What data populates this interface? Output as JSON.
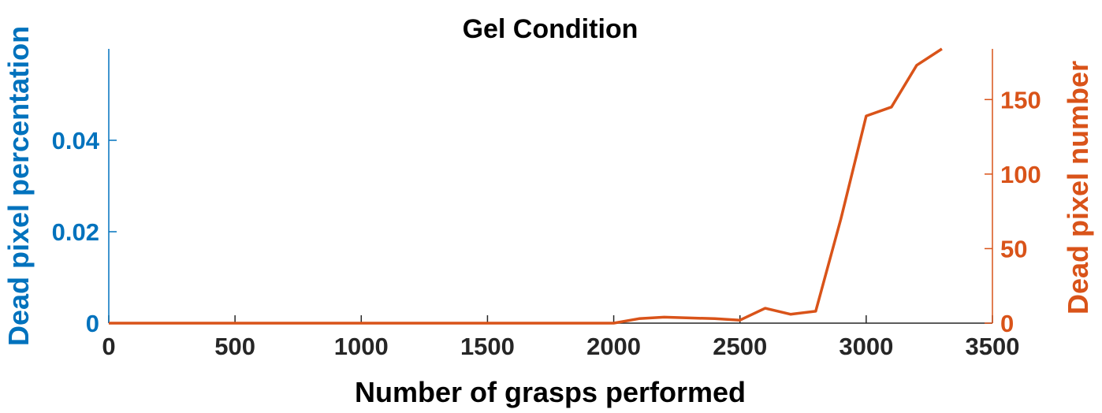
{
  "chart_data": {
    "type": "line",
    "title": "Gel Condition",
    "xlabel": "Number of grasps performed",
    "ylabel_left": "Dead pixel percentation",
    "ylabel_right": "Dead pixel number",
    "xlim": [
      0,
      3500
    ],
    "ylim_left": [
      0,
      0.06
    ],
    "ylim_right": [
      0,
      184
    ],
    "x_ticks": [
      "0",
      "500",
      "1000",
      "1500",
      "2000",
      "2500",
      "3000",
      "3500"
    ],
    "x_tick_values": [
      0,
      500,
      1000,
      1500,
      2000,
      2500,
      3000,
      3500
    ],
    "y_ticks_left": [
      "0",
      "0.02",
      "0.04"
    ],
    "y_tick_values_left": [
      0,
      0.02,
      0.04
    ],
    "y_ticks_right": [
      "0",
      "50",
      "100",
      "150"
    ],
    "y_tick_values_right": [
      0,
      50,
      100,
      150
    ],
    "grid": false,
    "series": [
      {
        "axis": "right",
        "color": "#d95319",
        "x": [
          0,
          100,
          200,
          300,
          400,
          500,
          600,
          700,
          800,
          900,
          1000,
          1100,
          1200,
          1300,
          1400,
          1500,
          1600,
          1700,
          1800,
          1900,
          2000,
          2100,
          2200,
          2300,
          2400,
          2500,
          2600,
          2700,
          2800,
          2900,
          3000,
          3100,
          3200,
          3300
        ],
        "values": [
          0,
          0,
          0,
          0,
          0,
          0,
          0,
          0,
          0,
          0,
          0,
          0,
          0,
          0,
          0,
          0,
          0,
          0,
          0,
          0,
          0,
          3,
          4,
          3.5,
          3,
          2,
          10,
          6,
          8,
          70,
          139,
          145,
          173,
          185
        ]
      }
    ]
  },
  "colors": {
    "left_axis": "#0072bd",
    "right_axis": "#d95319",
    "x_axis": "#262626"
  }
}
